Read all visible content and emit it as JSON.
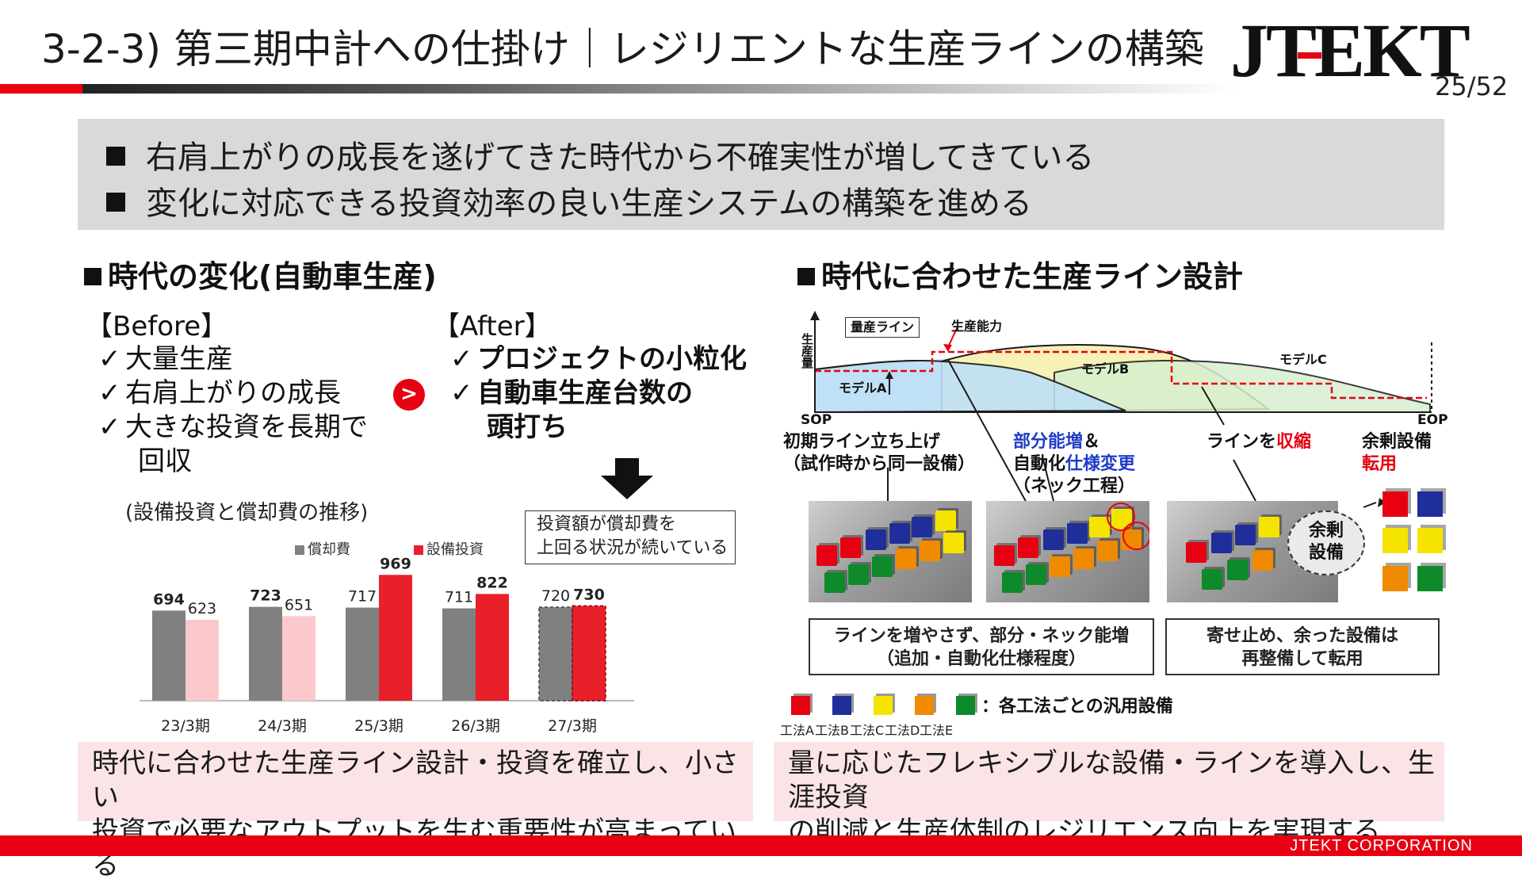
{
  "header": {
    "title": "3-2-3) 第三期中計への仕掛け｜レジリエントな生産ラインの構築",
    "logo_text": "JTEKT",
    "page_number": "25/52"
  },
  "summary": {
    "bullets": [
      "右肩上がりの成長を遂げてきた時代から不確実性が増してきている",
      "変化に対応できる投資効率の良い生産システムの構築を進める"
    ]
  },
  "left": {
    "heading": "時代の変化(自動車生産)",
    "before_label": "【Before】",
    "after_label": "【After】",
    "before_items": [
      "大量生産",
      "右肩上がりの成長",
      "大きな投資を長期で",
      "回収"
    ],
    "after_items": [
      "プロジェクトの小粒化",
      "自動車生産台数の",
      "頭打ち"
    ],
    "check_mark": "✓",
    "arrow_glyph": ">",
    "chart_caption": "(設備投資と償却費の推移)",
    "callout": [
      "投資額が償却費を",
      "上回る状況が続いている"
    ],
    "bottom_text": [
      "時代に合わせた生産ライン設計・投資を確立し、小さい",
      "投資で必要なアウトプットを生む重要性が高まっている"
    ]
  },
  "chart_data": {
    "type": "bar",
    "title": "",
    "categories": [
      "23/3期",
      "24/3期",
      "25/3期",
      "26/3期",
      "27/3期"
    ],
    "series": [
      {
        "name": "償却費",
        "values": [
          694,
          723,
          717,
          711,
          720
        ],
        "color": "#808080"
      },
      {
        "name": "設備投資",
        "values": [
          623,
          651,
          969,
          822,
          730
        ],
        "color": "#e8202a"
      }
    ],
    "value_labels": {
      "償却費": [
        "694",
        "723",
        "717",
        "711",
        "720"
      ],
      "設備投資": [
        "623",
        "651",
        "969",
        "822",
        "730"
      ]
    },
    "bold_labels": {
      "償却費": [
        true,
        true,
        false,
        false,
        false
      ],
      "設備投資": [
        false,
        false,
        true,
        true,
        true
      ]
    },
    "light_fill": {
      "設備投資": [
        true,
        true,
        false,
        false,
        false
      ]
    },
    "forecast": [
      false,
      false,
      false,
      false,
      true
    ],
    "ylim": [
      0,
      1050
    ],
    "legend_position": "top"
  },
  "right": {
    "heading": "時代に合わせた生産ライン設計",
    "graph": {
      "box_label": "量産ライン",
      "capacity_label": "生産能力",
      "y_label": "生産量",
      "model_a": "モデルA",
      "model_b": "モデルB",
      "model_c": "モデルC",
      "sop": "SOP",
      "eop": "EOP"
    },
    "labels": {
      "initial": [
        "初期ライン立ち上げ",
        "（試作時から同一設備）"
      ],
      "partial_1a": "部分能増",
      "partial_1b": "＆",
      "partial_2a": "自動化",
      "partial_2b": "仕様変更",
      "partial_3": "（ネック工程）",
      "shrink_a": "ラインを",
      "shrink_b": "収縮",
      "surplus_a": "余剰設備",
      "surplus_b": "転用",
      "surplus_bubble": [
        "余剰",
        "設備"
      ]
    },
    "note_left": [
      "ラインを増やさず、部分・ネック能増",
      "（追加・自動化仕様程度）"
    ],
    "note_right": [
      "寄せ止め、余った設備は",
      "再整備して転用"
    ],
    "legend_suffix": "：各工法ごとの汎用設備",
    "legend_items": [
      {
        "label": "工法A",
        "color": "#e60012"
      },
      {
        "label": "工法B",
        "color": "#1f2e9a"
      },
      {
        "label": "工法C",
        "color": "#f5e400"
      },
      {
        "label": "工法D",
        "color": "#f08a00"
      },
      {
        "label": "工法E",
        "color": "#0e8a2a"
      }
    ],
    "bottom_text": [
      "量に応じたフレキシブルな設備・ラインを導入し、生涯投資",
      "の削減と生産体制のレジリエンス向上を実現する"
    ]
  },
  "footer": {
    "company": "JTEKT  CORPORATION"
  },
  "colors": {
    "brand_red": "#e60012",
    "summary_bg": "#d9d9d9",
    "bottom_box_bg": "#fbe4e6"
  }
}
